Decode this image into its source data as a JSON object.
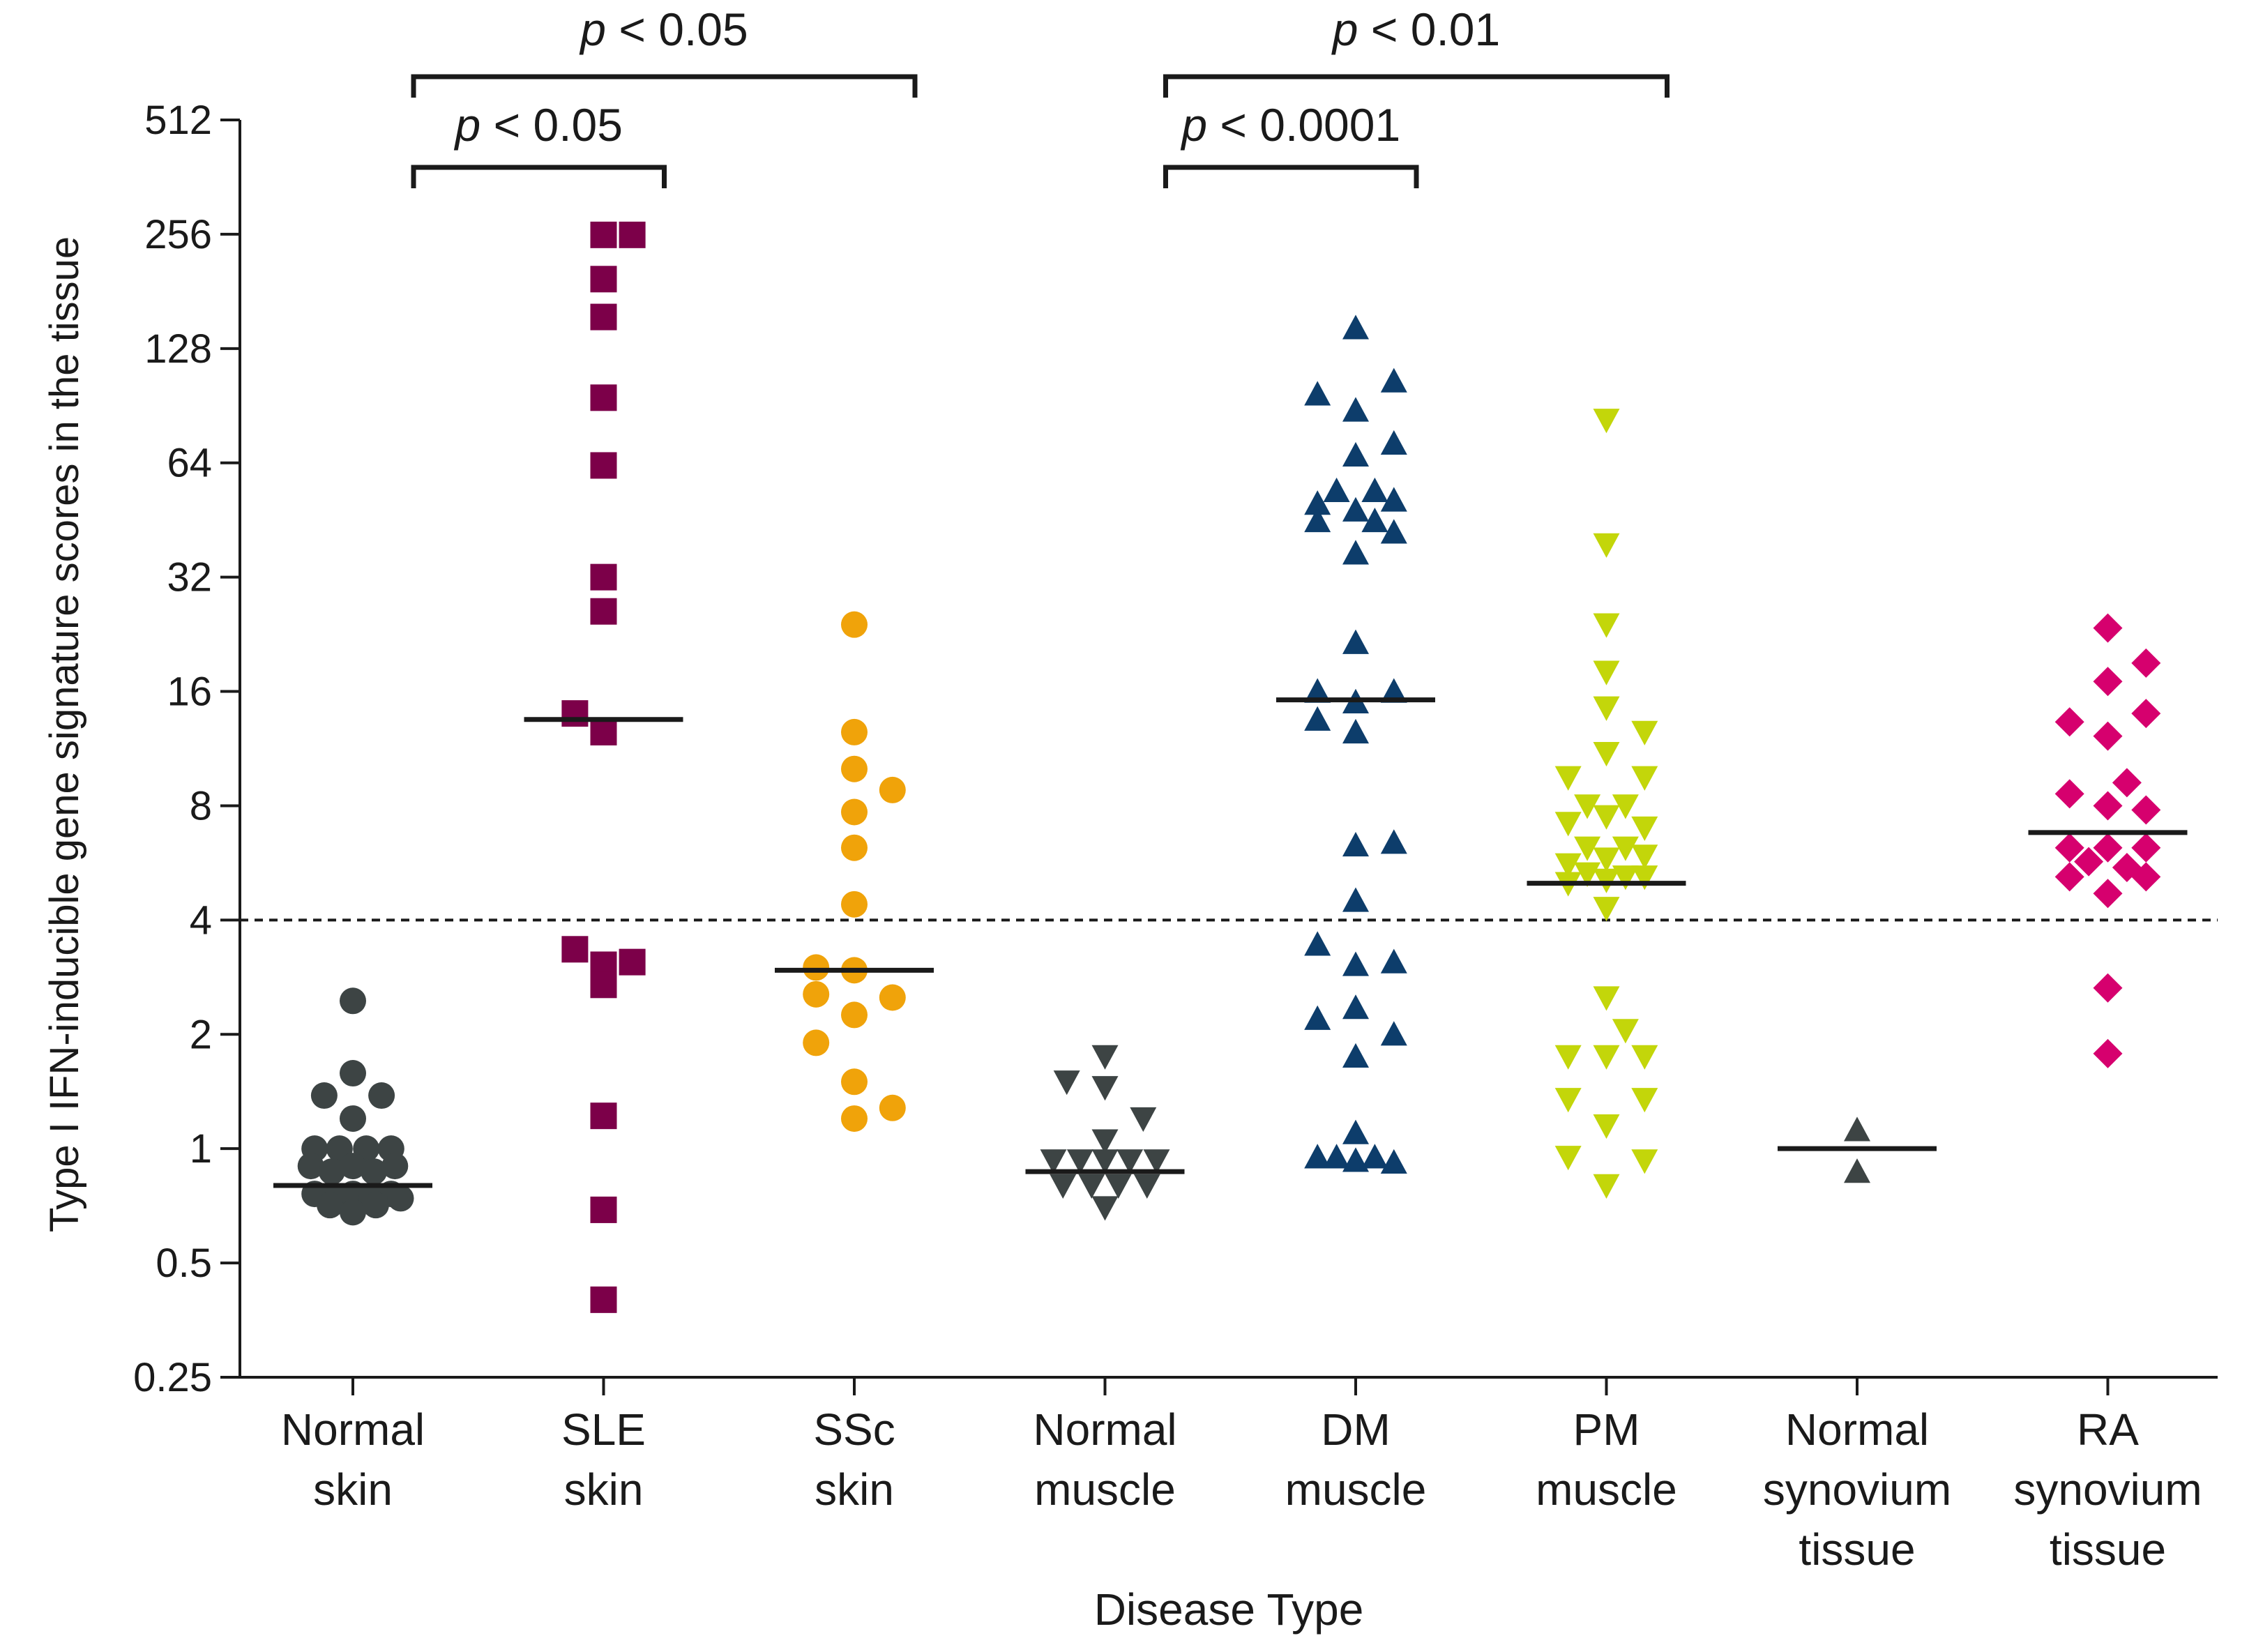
{
  "chart_data": {
    "type": "scatter",
    "title": "",
    "ylabel": "Type I IFN-inducible gene signature scores in the tissue",
    "xlabel": "Disease Type",
    "yscale": "log2",
    "ylim": [
      0.25,
      512
    ],
    "yticks": [
      {
        "value": 0.25,
        "label": "0.25"
      },
      {
        "value": 0.5,
        "label": "0.5"
      },
      {
        "value": 1,
        "label": "1"
      },
      {
        "value": 2,
        "label": "2"
      },
      {
        "value": 4,
        "label": "4"
      },
      {
        "value": 8,
        "label": "8"
      },
      {
        "value": 16,
        "label": "16"
      },
      {
        "value": 32,
        "label": "32"
      },
      {
        "value": 64,
        "label": "64"
      },
      {
        "value": 128,
        "label": "128"
      },
      {
        "value": 256,
        "label": "256"
      },
      {
        "value": 512,
        "label": "512"
      }
    ],
    "threshold": 4,
    "groups": [
      {
        "id": "normal-skin",
        "label_lines": [
          "Normal",
          "skin"
        ],
        "marker": "circle",
        "color": "#3d4444",
        "median": 0.8,
        "points": [
          {
            "dx": 0,
            "y": 2.45
          },
          {
            "dx": 0,
            "y": 1.58
          },
          {
            "dx": -0.15,
            "y": 1.38
          },
          {
            "dx": 0.15,
            "y": 1.38
          },
          {
            "dx": 0,
            "y": 1.2
          },
          {
            "dx": -0.2,
            "y": 1.0
          },
          {
            "dx": -0.07,
            "y": 1.0
          },
          {
            "dx": 0.07,
            "y": 1.0
          },
          {
            "dx": 0.2,
            "y": 1.0
          },
          {
            "dx": -0.22,
            "y": 0.9
          },
          {
            "dx": -0.11,
            "y": 0.87
          },
          {
            "dx": 0,
            "y": 0.9
          },
          {
            "dx": 0.11,
            "y": 0.87
          },
          {
            "dx": 0.22,
            "y": 0.9
          },
          {
            "dx": -0.2,
            "y": 0.76
          },
          {
            "dx": -0.1,
            "y": 0.74
          },
          {
            "dx": 0,
            "y": 0.76
          },
          {
            "dx": 0.1,
            "y": 0.74
          },
          {
            "dx": 0.2,
            "y": 0.76
          },
          {
            "dx": -0.12,
            "y": 0.71
          },
          {
            "dx": 0,
            "y": 0.68
          },
          {
            "dx": 0.12,
            "y": 0.71
          },
          {
            "dx": 0.25,
            "y": 0.74
          }
        ]
      },
      {
        "id": "sle-skin",
        "label_lines": [
          "SLE",
          "skin"
        ],
        "marker": "square",
        "color": "#7c0049",
        "median": 13.5,
        "points": [
          {
            "dx": 0,
            "y": 255
          },
          {
            "dx": 0.15,
            "y": 255
          },
          {
            "dx": 0,
            "y": 195
          },
          {
            "dx": 0,
            "y": 155
          },
          {
            "dx": 0,
            "y": 95
          },
          {
            "dx": 0,
            "y": 63
          },
          {
            "dx": 0,
            "y": 32
          },
          {
            "dx": 0,
            "y": 26
          },
          {
            "dx": -0.15,
            "y": 14
          },
          {
            "dx": 0,
            "y": 12.5
          },
          {
            "dx": -0.15,
            "y": 3.35
          },
          {
            "dx": 0.15,
            "y": 3.1
          },
          {
            "dx": 0,
            "y": 3.05
          },
          {
            "dx": 0,
            "y": 2.7
          },
          {
            "dx": 0,
            "y": 1.22
          },
          {
            "dx": 0,
            "y": 0.69
          },
          {
            "dx": 0,
            "y": 0.4
          }
        ]
      },
      {
        "id": "ssc-skin",
        "label_lines": [
          "SSc",
          "skin"
        ],
        "marker": "circle",
        "color": "#f0a30a",
        "median": 2.95,
        "points": [
          {
            "dx": 0,
            "y": 24
          },
          {
            "dx": 0,
            "y": 12.5
          },
          {
            "dx": 0,
            "y": 10
          },
          {
            "dx": 0.2,
            "y": 8.8
          },
          {
            "dx": 0,
            "y": 7.7
          },
          {
            "dx": 0,
            "y": 6.2
          },
          {
            "dx": 0,
            "y": 4.4
          },
          {
            "dx": -0.2,
            "y": 3.0
          },
          {
            "dx": 0,
            "y": 2.95
          },
          {
            "dx": -0.2,
            "y": 2.55
          },
          {
            "dx": 0.2,
            "y": 2.5
          },
          {
            "dx": 0,
            "y": 2.25
          },
          {
            "dx": -0.2,
            "y": 1.9
          },
          {
            "dx": 0,
            "y": 1.5
          },
          {
            "dx": 0.2,
            "y": 1.28
          },
          {
            "dx": 0,
            "y": 1.2
          }
        ]
      },
      {
        "id": "normal-muscle",
        "label_lines": [
          "Normal",
          "muscle"
        ],
        "marker": "triangle-down",
        "color": "#3d4444",
        "median": 0.87,
        "points": [
          {
            "dx": 0,
            "y": 1.75
          },
          {
            "dx": -0.2,
            "y": 1.5
          },
          {
            "dx": 0,
            "y": 1.45
          },
          {
            "dx": 0.2,
            "y": 1.2
          },
          {
            "dx": 0,
            "y": 1.05
          },
          {
            "dx": -0.27,
            "y": 0.93
          },
          {
            "dx": -0.13,
            "y": 0.93
          },
          {
            "dx": 0,
            "y": 0.93
          },
          {
            "dx": 0.13,
            "y": 0.93
          },
          {
            "dx": 0.27,
            "y": 0.93
          },
          {
            "dx": -0.22,
            "y": 0.8
          },
          {
            "dx": -0.07,
            "y": 0.8
          },
          {
            "dx": 0.07,
            "y": 0.8
          },
          {
            "dx": 0.22,
            "y": 0.8
          },
          {
            "dx": 0,
            "y": 0.7
          }
        ]
      },
      {
        "id": "dm-muscle",
        "label_lines": [
          "DM",
          "muscle"
        ],
        "marker": "triangle-up",
        "color": "#0d3d6b",
        "median": 15.2,
        "points": [
          {
            "dx": 0,
            "y": 145
          },
          {
            "dx": 0.2,
            "y": 105
          },
          {
            "dx": -0.2,
            "y": 97
          },
          {
            "dx": 0,
            "y": 88
          },
          {
            "dx": 0.2,
            "y": 72
          },
          {
            "dx": 0,
            "y": 67
          },
          {
            "dx": -0.1,
            "y": 54
          },
          {
            "dx": 0.1,
            "y": 54
          },
          {
            "dx": -0.2,
            "y": 50
          },
          {
            "dx": 0,
            "y": 48
          },
          {
            "dx": 0.2,
            "y": 51
          },
          {
            "dx": -0.2,
            "y": 45
          },
          {
            "dx": 0.1,
            "y": 45
          },
          {
            "dx": 0.2,
            "y": 42
          },
          {
            "dx": 0,
            "y": 37
          },
          {
            "dx": 0,
            "y": 21.5
          },
          {
            "dx": -0.2,
            "y": 16
          },
          {
            "dx": 0.2,
            "y": 16
          },
          {
            "dx": 0,
            "y": 15
          },
          {
            "dx": -0.2,
            "y": 13.5
          },
          {
            "dx": 0,
            "y": 12.5
          },
          {
            "dx": 0,
            "y": 6.3
          },
          {
            "dx": 0.2,
            "y": 6.4
          },
          {
            "dx": 0,
            "y": 4.5
          },
          {
            "dx": -0.2,
            "y": 3.45
          },
          {
            "dx": 0,
            "y": 3.05
          },
          {
            "dx": 0.2,
            "y": 3.1
          },
          {
            "dx": 0,
            "y": 2.35
          },
          {
            "dx": -0.2,
            "y": 2.2
          },
          {
            "dx": 0.2,
            "y": 2.0
          },
          {
            "dx": 0,
            "y": 1.75
          },
          {
            "dx": 0,
            "y": 1.1
          },
          {
            "dx": -0.2,
            "y": 0.95
          },
          {
            "dx": -0.1,
            "y": 0.95
          },
          {
            "dx": 0,
            "y": 0.93
          },
          {
            "dx": 0.1,
            "y": 0.95
          },
          {
            "dx": 0.2,
            "y": 0.92
          }
        ]
      },
      {
        "id": "pm-muscle",
        "label_lines": [
          "PM",
          "muscle"
        ],
        "marker": "triangle-down",
        "color": "#c3d60a",
        "median": 5.0,
        "points": [
          {
            "dx": 0,
            "y": 83
          },
          {
            "dx": 0,
            "y": 39
          },
          {
            "dx": 0,
            "y": 24
          },
          {
            "dx": 0,
            "y": 18
          },
          {
            "dx": 0,
            "y": 14.5
          },
          {
            "dx": 0.2,
            "y": 12.5
          },
          {
            "dx": 0,
            "y": 11
          },
          {
            "dx": -0.2,
            "y": 9.5
          },
          {
            "dx": 0.2,
            "y": 9.5
          },
          {
            "dx": -0.1,
            "y": 8
          },
          {
            "dx": 0.1,
            "y": 8
          },
          {
            "dx": -0.2,
            "y": 7.2
          },
          {
            "dx": 0,
            "y": 7.5
          },
          {
            "dx": 0.2,
            "y": 7
          },
          {
            "dx": -0.1,
            "y": 6.2
          },
          {
            "dx": 0.1,
            "y": 6.2
          },
          {
            "dx": 0,
            "y": 5.8
          },
          {
            "dx": 0.2,
            "y": 5.9
          },
          {
            "dx": -0.2,
            "y": 5.6
          },
          {
            "dx": -0.1,
            "y": 5.3
          },
          {
            "dx": 0,
            "y": 5.1
          },
          {
            "dx": 0.1,
            "y": 5.2
          },
          {
            "dx": 0.2,
            "y": 5.2
          },
          {
            "dx": -0.2,
            "y": 5.0
          },
          {
            "dx": 0,
            "y": 4.3
          },
          {
            "dx": 0,
            "y": 2.5
          },
          {
            "dx": 0.1,
            "y": 2.05
          },
          {
            "dx": -0.2,
            "y": 1.75
          },
          {
            "dx": 0,
            "y": 1.75
          },
          {
            "dx": 0.2,
            "y": 1.75
          },
          {
            "dx": -0.2,
            "y": 1.35
          },
          {
            "dx": 0.2,
            "y": 1.35
          },
          {
            "dx": 0,
            "y": 1.15
          },
          {
            "dx": -0.2,
            "y": 0.95
          },
          {
            "dx": 0.2,
            "y": 0.93
          },
          {
            "dx": 0,
            "y": 0.8
          }
        ]
      },
      {
        "id": "normal-synovium",
        "label_lines": [
          "Normal",
          "synovium",
          "tissue"
        ],
        "marker": "triangle-up",
        "color": "#3d4444",
        "median": 1.0,
        "points": [
          {
            "dx": 0,
            "y": 1.12
          },
          {
            "dx": 0,
            "y": 0.87
          }
        ]
      },
      {
        "id": "ra-synovium",
        "label_lines": [
          "RA",
          "synovium",
          "tissue"
        ],
        "marker": "diamond",
        "color": "#d6006e",
        "median": 6.8,
        "points": [
          {
            "dx": 0,
            "y": 23.5
          },
          {
            "dx": 0.2,
            "y": 19
          },
          {
            "dx": 0,
            "y": 17
          },
          {
            "dx": 0.2,
            "y": 14
          },
          {
            "dx": -0.2,
            "y": 13.3
          },
          {
            "dx": 0,
            "y": 12.2
          },
          {
            "dx": 0.1,
            "y": 9.2
          },
          {
            "dx": -0.2,
            "y": 8.6
          },
          {
            "dx": 0,
            "y": 8
          },
          {
            "dx": 0.2,
            "y": 7.8
          },
          {
            "dx": -0.2,
            "y": 6.2
          },
          {
            "dx": 0,
            "y": 6.2
          },
          {
            "dx": 0.2,
            "y": 6.2
          },
          {
            "dx": -0.1,
            "y": 5.7
          },
          {
            "dx": 0.1,
            "y": 5.5
          },
          {
            "dx": -0.2,
            "y": 5.2
          },
          {
            "dx": 0.2,
            "y": 5.2
          },
          {
            "dx": 0,
            "y": 4.7
          },
          {
            "dx": 0,
            "y": 2.65
          },
          {
            "dx": 0,
            "y": 1.78
          }
        ]
      }
    ],
    "comparisons": [
      {
        "from": 0,
        "to": 1,
        "level": 1,
        "p_prefix": "p",
        "p_text": " < 0.05"
      },
      {
        "from": 0,
        "to": 2,
        "level": 2,
        "p_prefix": "p",
        "p_text": " < 0.05"
      },
      {
        "from": 3,
        "to": 4,
        "level": 1,
        "p_prefix": "p",
        "p_text": " < 0.0001"
      },
      {
        "from": 3,
        "to": 5,
        "level": 2,
        "p_prefix": "p",
        "p_text": " < 0.01"
      }
    ]
  }
}
